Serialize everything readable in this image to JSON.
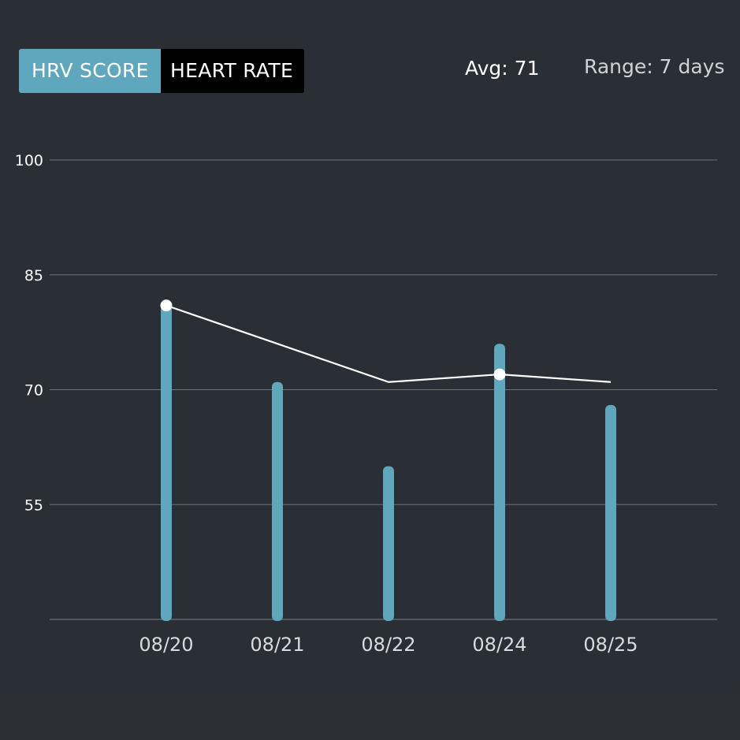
{
  "toggle": {
    "options": [
      "HRV SCORE",
      "HEART RATE"
    ],
    "selected": "HRV SCORE"
  },
  "summary": {
    "avg_label": "Avg: 71",
    "range_label": "Range: 7 days"
  },
  "colors": {
    "background": "#2a2e35",
    "bar": "#5fa7bd",
    "line": "#ffffff",
    "grid": "#6e7277",
    "toggle_active": "#5fa7bd",
    "toggle_inactive": "#000000"
  },
  "chart_data": {
    "type": "bar",
    "categories": [
      "08/20",
      "08/21",
      "08/22",
      "08/24",
      "08/25"
    ],
    "series": [
      {
        "type": "bar",
        "values": [
          81,
          71,
          60,
          76,
          68
        ]
      },
      {
        "type": "line",
        "values": [
          81,
          76,
          71,
          72,
          71
        ],
        "markers_at": [
          0,
          3
        ]
      }
    ],
    "y_ticks": [
      100,
      85,
      70,
      55
    ],
    "ylim": [
      40,
      100
    ],
    "grid": true
  }
}
